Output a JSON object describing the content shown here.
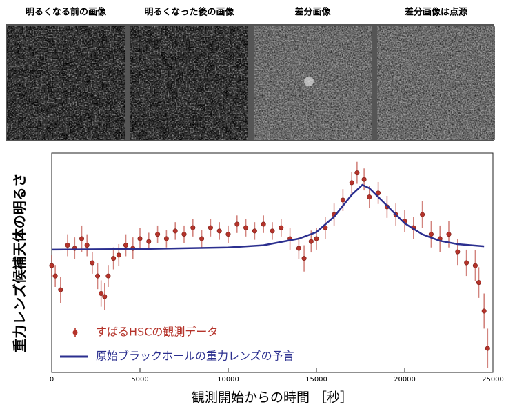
{
  "panels": [
    {
      "label": "明るくなる前の画像"
    },
    {
      "label": "明るくなった後の画像"
    },
    {
      "label": "差分画像"
    },
    {
      "label": "差分画像は点源"
    }
  ],
  "chart_data": {
    "type": "scatter",
    "x_label": "観測開始からの時間 ［秒］",
    "y_label": "重力レンズ候補天体の明るさ",
    "xlim": [
      0,
      25000
    ],
    "xticks": [
      0,
      5000,
      10000,
      15000,
      20000,
      25000
    ],
    "ylim": [
      0,
      100
    ],
    "legend": "lower left",
    "series": [
      {
        "name": "すばるHSCの観測データ",
        "color": "#b5332a",
        "kind": "errorbar",
        "x": [
          0,
          200,
          500,
          900,
          1300,
          1700,
          2000,
          2300,
          2600,
          2800,
          3000,
          3200,
          3500,
          3800,
          4200,
          4600,
          5000,
          5500,
          6000,
          6500,
          7000,
          7500,
          8000,
          8500,
          9000,
          9500,
          10000,
          10500,
          11000,
          11500,
          12000,
          12500,
          13000,
          13500,
          14000,
          14300,
          14700,
          15000,
          15500,
          16000,
          16500,
          17000,
          17300,
          17700,
          18000,
          18500,
          19000,
          19500,
          20000,
          20500,
          21000,
          21500,
          22000,
          22500,
          23000,
          23500,
          24000,
          24200,
          24500,
          24700
        ],
        "values": [
          48.7,
          44,
          37.7,
          58,
          56.6,
          61,
          58,
          50,
          44,
          36,
          34.6,
          44,
          52,
          53.5,
          58,
          56.6,
          61,
          59.7,
          63,
          61,
          64.5,
          63,
          66,
          61,
          66,
          64.5,
          63,
          67.6,
          66,
          64.5,
          67.6,
          64.5,
          66,
          61,
          56.6,
          52,
          59.7,
          61,
          66,
          72,
          78.6,
          86.5,
          91,
          88,
          80,
          81.8,
          75.5,
          72,
          69,
          66,
          72,
          63,
          61,
          63,
          55,
          50,
          48.7,
          41,
          28,
          11
        ],
        "errors": [
          5,
          5,
          6,
          5,
          5,
          6,
          5,
          5,
          6,
          6,
          6,
          5,
          5,
          5,
          5,
          5,
          5,
          4,
          4,
          4,
          4,
          4,
          4,
          4,
          4,
          4,
          4,
          4,
          4,
          4,
          4,
          4,
          4,
          5,
          5,
          6,
          5,
          5,
          5,
          5,
          5,
          5,
          5,
          5,
          5,
          5,
          5,
          5,
          5,
          5,
          6,
          6,
          6,
          6,
          6,
          6,
          7,
          7,
          8,
          9
        ]
      },
      {
        "name": "原始ブラックホールの重力レンズの予言",
        "color": "#2b2f8f",
        "kind": "line",
        "x": [
          0,
          5000,
          10000,
          12000,
          14000,
          15000,
          16000,
          17000,
          17600,
          18000,
          19000,
          20000,
          21000,
          22000,
          23000,
          24500
        ],
        "values": [
          56,
          56.3,
          57,
          58,
          61,
          64,
          71,
          81,
          85.5,
          84,
          76,
          68,
          63,
          60,
          58.5,
          57.5
        ]
      }
    ]
  }
}
